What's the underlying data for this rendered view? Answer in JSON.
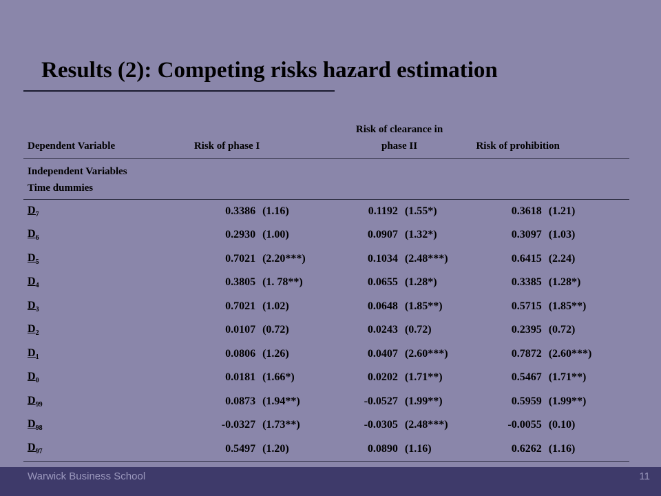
{
  "title": "Results (2): Competing risks hazard estimation",
  "table": {
    "headers": {
      "dependent_variable": "Dependent Variable",
      "risk_phase1": "Risk of phase I",
      "risk_clearance_line1": "Risk of clearance in",
      "risk_clearance_line2": "phase II",
      "risk_prohibition": "Risk of prohibition"
    },
    "independent_variables": "Independent Variables",
    "time_dummies": "Time dummies",
    "rows": [
      {
        "base": "D",
        "sub": "7",
        "c1": "0.3386",
        "t1": "(1.16)",
        "c2": "0.1192",
        "t2": "(1.55*)",
        "c3": "0.3618",
        "t3": "(1.21)"
      },
      {
        "base": "D",
        "sub": "6",
        "c1": "0.2930",
        "t1": "(1.00)",
        "c2": "0.0907",
        "t2": "(1.32*)",
        "c3": "0.3097",
        "t3": "(1.03)"
      },
      {
        "base": "D",
        "sub": "5",
        "c1": "0.7021",
        "t1": "(2.20***)",
        "c2": "0.1034",
        "t2": "(2.48***)",
        "c3": "0.6415",
        "t3": "(2.24)"
      },
      {
        "base": "D",
        "sub": "4",
        "c1": "0.3805",
        "t1": "(1. 78**)",
        "c2": "0.0655",
        "t2": "(1.28*)",
        "c3": "0.3385",
        "t3": "(1.28*)"
      },
      {
        "base": "D",
        "sub": "3",
        "c1": "0.7021",
        "t1": "(1.02)",
        "c2": "0.0648",
        "t2": "(1.85**)",
        "c3": "0.5715",
        "t3": "(1.85**)"
      },
      {
        "base": "D",
        "sub": "2",
        "c1": "0.0107",
        "t1": "(0.72)",
        "c2": "0.0243",
        "t2": "(0.72)",
        "c3": "0.2395",
        "t3": "(0.72)"
      },
      {
        "base": "D",
        "sub": "1",
        "c1": "0.0806",
        "t1": "(1.26)",
        "c2": "0.0407",
        "t2": "(2.60***)",
        "c3": "0.7872",
        "t3": "(2.60***)"
      },
      {
        "base": "D",
        "sub": "0",
        "c1": "0.0181",
        "t1": "(1.66*)",
        "c2": "0.0202",
        "t2": "(1.71**)",
        "c3": "0.5467",
        "t3": "(1.71**)"
      },
      {
        "base": "D",
        "sub": "99",
        "c1": "0.0873",
        "t1": "(1.94**)",
        "c2": "-0.0527",
        "t2": "(1.99**)",
        "c3": "0.5959",
        "t3": "(1.99**)"
      },
      {
        "base": "D",
        "sub": "98",
        "c1": "-0.0327",
        "t1": "(1.73**)",
        "c2": "-0.0305",
        "t2": "(2.48***)",
        "c3": "-0.0055",
        "t3": "(0.10)"
      },
      {
        "base": "D",
        "sub": "97",
        "c1": "0.5497",
        "t1": "(1.20)",
        "c2": "0.0890",
        "t2": "(1.16)",
        "c3": "0.6262",
        "t3": "(1.16)"
      }
    ]
  },
  "footer": {
    "brand": "Warwick Business School",
    "page_number": "11"
  }
}
